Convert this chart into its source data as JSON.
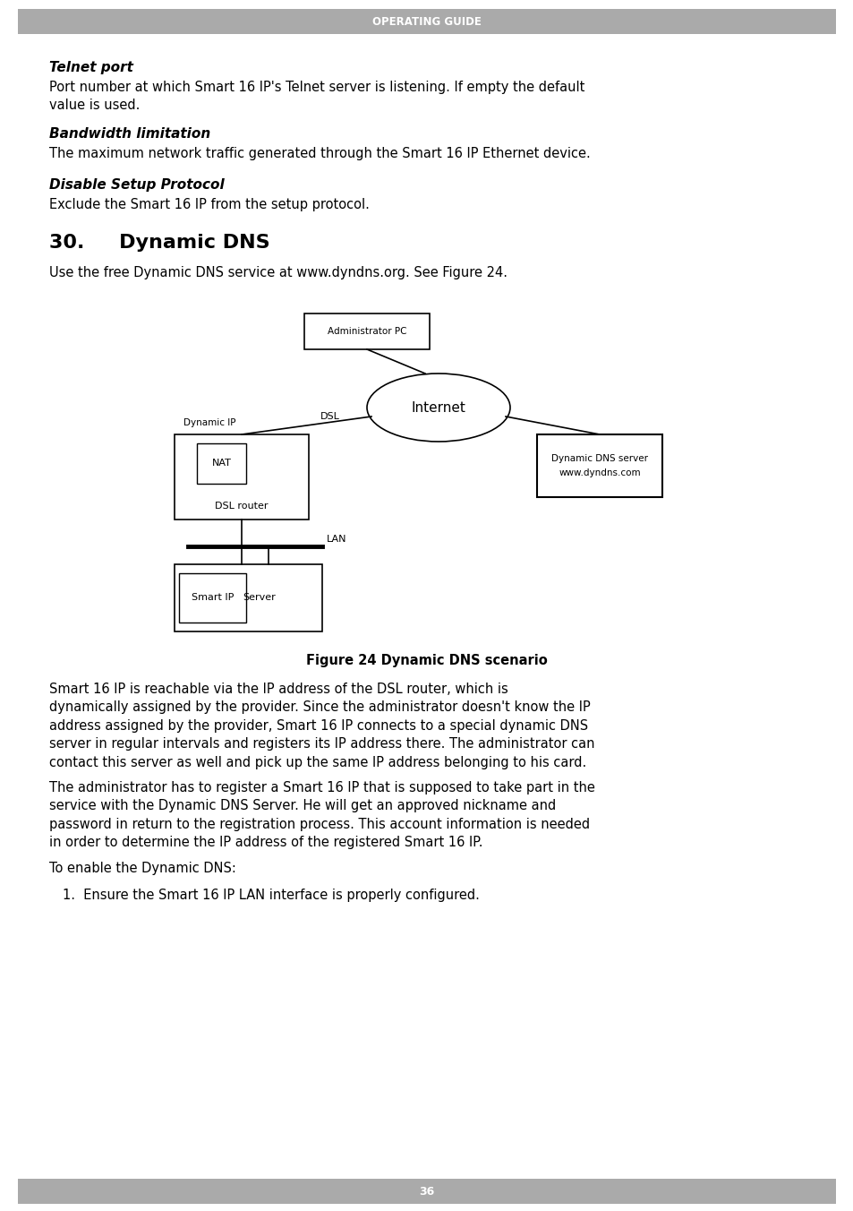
{
  "header_text": "OPERATING GUIDE",
  "header_bg": "#aaaaaa",
  "header_text_color": "#ffffff",
  "footer_text": "36",
  "footer_bg": "#aaaaaa",
  "footer_text_color": "#ffffff",
  "bg_color": "#ffffff",
  "text_color": "#000000",
  "sections": [
    {
      "type": "heading2",
      "text": "Telnet port"
    },
    {
      "type": "body",
      "text": "Port number at which Smart 16 IP's Telnet server is listening. If empty the default value is used."
    },
    {
      "type": "heading2",
      "text": "Bandwidth limitation"
    },
    {
      "type": "body",
      "text": "The maximum network traffic generated through the Smart 16 IP Ethernet device."
    },
    {
      "type": "heading2",
      "text": "Disable Setup Protocol"
    },
    {
      "type": "body",
      "text": "Exclude the Smart 16 IP from the setup protocol."
    },
    {
      "type": "heading1",
      "text": "30.    Dynamic DNS"
    },
    {
      "type": "body",
      "text": "Use the free Dynamic DNS service at www.dyndns.org. See Figure 24."
    }
  ],
  "figure_caption": "Figure 24 Dynamic DNS scenario",
  "body_paragraphs": [
    "Smart 16 IP is reachable via the IP address of the DSL router, which is dynamically assigned by the provider. Since the administrator doesn't know the IP address assigned by the provider, Smart 16 IP connects to a special dynamic DNS server in regular intervals and registers its IP address there. The administrator can contact this server as well and pick up the same IP address belonging to his card.",
    "The administrator has to register a Smart 16 IP that is supposed to take part in the service with the Dynamic DNS Server. He will get an approved nickname and password in return to the registration process. This account information is needed in order to determine the IP address of the registered Smart 16 IP.",
    "To enable the Dynamic DNS:"
  ],
  "numbered_item": "1.  Ensure the Smart 16 IP LAN interface is properly configured."
}
